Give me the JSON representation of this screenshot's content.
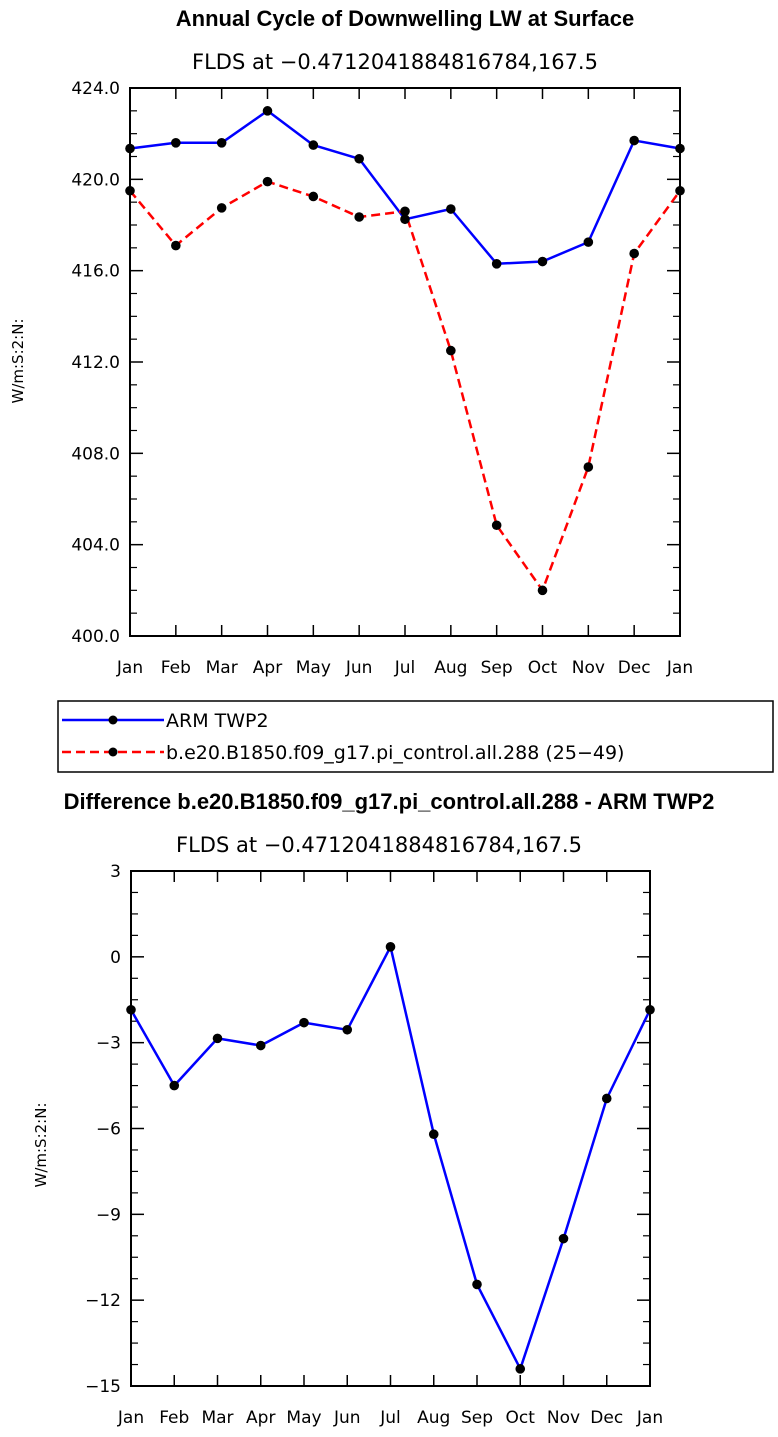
{
  "chart_data": [
    {
      "type": "line",
      "title": "Annual Cycle of Downwelling LW at Surface",
      "subtitle": "FLDS at −0.4712041884816784,167.5",
      "xlabel": "",
      "ylabel": "W/m:S:2:N:",
      "categories": [
        "Jan",
        "Feb",
        "Mar",
        "Apr",
        "May",
        "Jun",
        "Jul",
        "Aug",
        "Sep",
        "Oct",
        "Nov",
        "Dec",
        "Jan"
      ],
      "ylim": [
        400,
        424
      ],
      "yticks": [
        "400.0",
        "404.0",
        "408.0",
        "412.0",
        "416.0",
        "420.0",
        "424.0"
      ],
      "series": [
        {
          "name": "ARM TWP2",
          "color": "#0000ff",
          "dash": "solid",
          "values": [
            421.35,
            421.6,
            421.6,
            423.0,
            421.5,
            420.9,
            418.25,
            418.7,
            416.3,
            416.4,
            417.25,
            421.7,
            421.35
          ]
        },
        {
          "name": "b.e20.B1850.f09_g17.pi_control.all.288 (25−49)",
          "color": "#ff0000",
          "dash": "dashed",
          "values": [
            419.5,
            417.1,
            418.75,
            419.9,
            419.25,
            418.35,
            418.6,
            412.5,
            404.85,
            402.0,
            407.4,
            416.75,
            419.5
          ]
        }
      ]
    },
    {
      "type": "line",
      "title": "Difference b.e20.B1850.f09_g17.pi_control.all.288 - ARM TWP2",
      "subtitle": "FLDS at −0.4712041884816784,167.5",
      "xlabel": "",
      "ylabel": "W/m:S:2:N:",
      "categories": [
        "Jan",
        "Feb",
        "Mar",
        "Apr",
        "May",
        "Jun",
        "Jul",
        "Aug",
        "Sep",
        "Oct",
        "Nov",
        "Dec",
        "Jan"
      ],
      "ylim": [
        -15,
        3
      ],
      "yticks": [
        "−15",
        "−12",
        "−9",
        "−6",
        "−3",
        "0",
        "3"
      ],
      "series": [
        {
          "name": "Difference",
          "color": "#0000ff",
          "dash": "solid",
          "values": [
            -1.85,
            -4.5,
            -2.85,
            -3.1,
            -2.3,
            -2.55,
            0.35,
            -6.2,
            -11.45,
            -14.4,
            -9.85,
            -4.95,
            -1.85
          ]
        }
      ]
    }
  ]
}
